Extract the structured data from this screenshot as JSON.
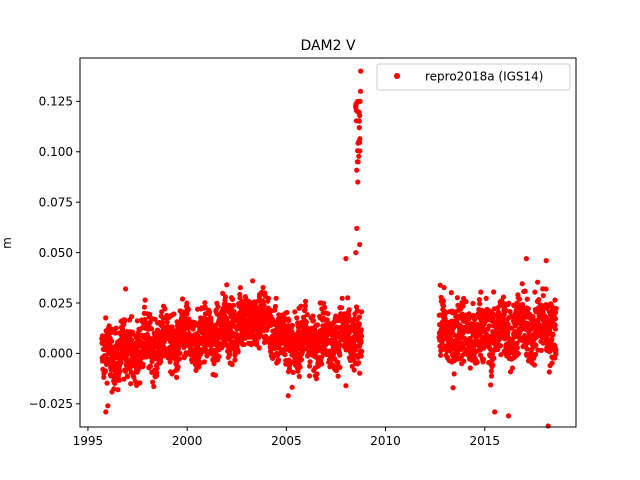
{
  "chart_data": {
    "type": "scatter",
    "title": "DAM2 V",
    "xlabel": "",
    "ylabel": "m",
    "xlim": [
      1994.6,
      2019.6
    ],
    "ylim": [
      -0.0365,
      0.1465
    ],
    "xticks": [
      1995,
      2000,
      2005,
      2010,
      2015
    ],
    "yticks": [
      -0.025,
      0.0,
      0.025,
      0.05,
      0.075,
      0.1,
      0.125
    ],
    "ytick_labels": [
      "−0.025",
      "0.000",
      "0.025",
      "0.050",
      "0.075",
      "0.100",
      "0.125"
    ],
    "grid": false,
    "legend": {
      "entries": [
        "repro2018a (IGS14)"
      ],
      "placement": "top-right"
    },
    "series": [
      {
        "name": "repro2018a (IGS14)",
        "color": "#ff0000",
        "marker": "circle",
        "segments": [
          {
            "x_start": 1995.7,
            "x_end": 2008.8,
            "baseline": [
              [
                1995.7,
                -0.002
              ],
              [
                1998.5,
                0.005
              ],
              [
                2001.0,
                0.008
              ],
              [
                2003.5,
                0.018
              ],
              [
                2005.2,
                0.005
              ],
              [
                2007.0,
                0.008
              ],
              [
                2008.8,
                0.008
              ]
            ],
            "spread": 0.007
          },
          {
            "x_start": 2012.7,
            "x_end": 2018.6,
            "baseline": [
              [
                2012.7,
                0.01
              ],
              [
                2014.5,
                0.009
              ],
              [
                2016.5,
                0.012
              ],
              [
                2018.6,
                0.014
              ]
            ],
            "spread": 0.008
          }
        ],
        "spike": {
          "x_start": 2008.45,
          "x_end": 2008.75,
          "points": [
            [
              2008.5,
              0.05
            ],
            [
              2008.55,
              0.062
            ],
            [
              2008.6,
              0.085
            ],
            [
              2008.62,
              0.095
            ],
            [
              2008.65,
              0.105
            ],
            [
              2008.68,
              0.112
            ],
            [
              2008.7,
              0.118
            ],
            [
              2008.72,
              0.125
            ],
            [
              2008.74,
              0.13
            ],
            [
              2008.75,
              0.14
            ],
            [
              2008.7,
              0.054
            ]
          ]
        },
        "extremes": [
          [
            1995.9,
            -0.029
          ],
          [
            1996.0,
            -0.026
          ],
          [
            1996.9,
            0.032
          ],
          [
            2002.0,
            0.034
          ],
          [
            2003.3,
            0.036
          ],
          [
            2005.1,
            -0.021
          ],
          [
            2008.0,
            0.047
          ],
          [
            2008.0,
            -0.016
          ],
          [
            2015.5,
            -0.029
          ],
          [
            2016.2,
            -0.031
          ],
          [
            2017.1,
            0.047
          ],
          [
            2018.2,
            -0.036
          ],
          [
            2018.1,
            0.046
          ]
        ]
      }
    ]
  }
}
